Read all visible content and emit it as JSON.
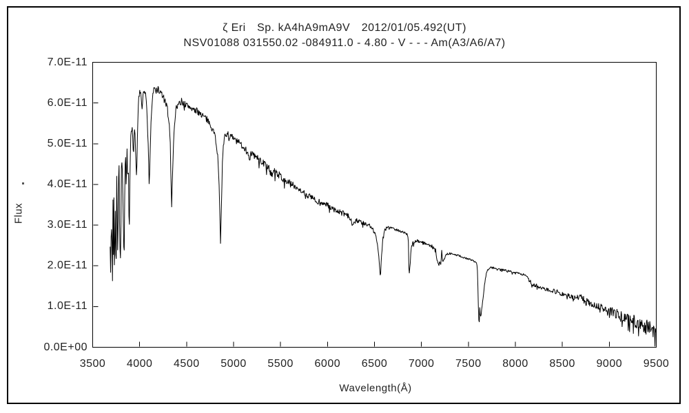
{
  "page": {
    "background": "#ffffff",
    "border_color": "#000000"
  },
  "chart_data": {
    "type": "line",
    "title_line1": "ζ Eri　Sp. kA4hA9mA9V　2012/01/05.492(UT)",
    "title_line2": "NSV01088 031550.02 -084911.0 - 4.80 - V - - - Am(A3/A6/A7)",
    "xlabel": "Wavelength(Å)",
    "ylabel": "Flux",
    "stray_mark": ".",
    "line_color": "#000000",
    "grid": false,
    "legend": "none",
    "xlim": [
      3500,
      9500
    ],
    "ylim_flux_1e11": [
      0,
      7
    ],
    "flux_scale": "1e-11",
    "x_ticks": [
      3500,
      4000,
      4500,
      5000,
      5500,
      6000,
      6500,
      7000,
      7500,
      8000,
      8500,
      9000,
      9500
    ],
    "x_tick_labels": [
      "3500",
      "4000",
      "4500",
      "5000",
      "5500",
      "6000",
      "6500",
      "7000",
      "7500",
      "8000",
      "8500",
      "9000",
      "9500"
    ],
    "y_ticks_flux_1e11": [
      0,
      1,
      2,
      3,
      4,
      5,
      6,
      7
    ],
    "y_tick_labels": [
      "0.0E+00",
      "1.0E-11",
      "2.0E-11",
      "3.0E-11",
      "4.0E-11",
      "5.0E-11",
      "6.0E-11",
      "7.0E-11"
    ],
    "series_name": "flux-spectrum",
    "sample_step_angstrom": 5,
    "noise_seed": 7,
    "noise_segments": [
      [
        3686,
        0.05
      ],
      [
        3990,
        0.1
      ],
      [
        4315,
        0.05
      ],
      [
        4360,
        0.09
      ],
      [
        4830,
        0.04
      ],
      [
        4880,
        0.09
      ],
      [
        5150,
        0.09
      ],
      [
        5650,
        0.07
      ],
      [
        6450,
        0.04
      ],
      [
        6600,
        0.035
      ],
      [
        6850,
        0.02
      ],
      [
        6900,
        0.04
      ],
      [
        7150,
        0.03
      ],
      [
        7240,
        0.03
      ],
      [
        7590,
        0.02
      ],
      [
        7660,
        0.02
      ],
      [
        7700,
        0.025
      ],
      [
        8140,
        0.05
      ],
      [
        8400,
        0.07
      ],
      [
        8700,
        0.09
      ],
      [
        9000,
        0.12
      ],
      [
        9250,
        0.16
      ],
      [
        9380,
        0.2
      ]
    ],
    "anchors": [
      [
        3686,
        2.6
      ],
      [
        3690,
        1.35
      ],
      [
        3694,
        3.1
      ],
      [
        3698,
        2.3
      ],
      [
        3703,
        3.3
      ],
      [
        3708,
        2.1
      ],
      [
        3712,
        1.5
      ],
      [
        3716,
        3.6
      ],
      [
        3721,
        2.3
      ],
      [
        3726,
        3.7
      ],
      [
        3730,
        2.2
      ],
      [
        3734,
        1.55
      ],
      [
        3739,
        3.9
      ],
      [
        3744,
        2.6
      ],
      [
        3750,
        1.75
      ],
      [
        3756,
        4.25
      ],
      [
        3762,
        3.0
      ],
      [
        3768,
        2.05
      ],
      [
        3774,
        4.1
      ],
      [
        3781,
        4.5
      ],
      [
        3788,
        2.6
      ],
      [
        3798,
        2.1
      ],
      [
        3806,
        4.4
      ],
      [
        3814,
        4.65
      ],
      [
        3822,
        3.6
      ],
      [
        3835,
        2.1
      ],
      [
        3843,
        4.2
      ],
      [
        3850,
        4.85
      ],
      [
        3858,
        3.7
      ],
      [
        3865,
        5.0
      ],
      [
        3872,
        4.1
      ],
      [
        3880,
        4.5
      ],
      [
        3889,
        2.55
      ],
      [
        3897,
        4.3
      ],
      [
        3905,
        5.15
      ],
      [
        3915,
        5.45
      ],
      [
        3925,
        5.3
      ],
      [
        3934,
        4.6
      ],
      [
        3943,
        5.4
      ],
      [
        3952,
        5.2
      ],
      [
        3960,
        4.6
      ],
      [
        3968,
        4.15
      ],
      [
        3976,
        5.1
      ],
      [
        3985,
        5.9
      ],
      [
        3995,
        6.2
      ],
      [
        4005,
        6.3
      ],
      [
        4015,
        6.25
      ],
      [
        4022,
        5.95
      ],
      [
        4030,
        6.2
      ],
      [
        4040,
        6.35
      ],
      [
        4050,
        6.3
      ],
      [
        4062,
        6.2
      ],
      [
        4075,
        5.9
      ],
      [
        4088,
        5.2
      ],
      [
        4102,
        3.95
      ],
      [
        4112,
        4.8
      ],
      [
        4122,
        5.6
      ],
      [
        4132,
        6.0
      ],
      [
        4145,
        6.25
      ],
      [
        4158,
        6.35
      ],
      [
        4172,
        6.3
      ],
      [
        4188,
        6.35
      ],
      [
        4205,
        6.3
      ],
      [
        4222,
        6.25
      ],
      [
        4240,
        6.2
      ],
      [
        4258,
        6.1
      ],
      [
        4275,
        6.0
      ],
      [
        4295,
        5.85
      ],
      [
        4312,
        5.6
      ],
      [
        4326,
        5.0
      ],
      [
        4340,
        3.4
      ],
      [
        4352,
        4.4
      ],
      [
        4365,
        5.3
      ],
      [
        4378,
        5.7
      ],
      [
        4392,
        5.9
      ],
      [
        4408,
        5.95
      ],
      [
        4425,
        6.0
      ],
      [
        4445,
        6.05
      ],
      [
        4468,
        6.0
      ],
      [
        4490,
        5.95
      ],
      [
        4515,
        5.92
      ],
      [
        4540,
        5.9
      ],
      [
        4570,
        5.85
      ],
      [
        4600,
        5.8
      ],
      [
        4630,
        5.78
      ],
      [
        4660,
        5.72
      ],
      [
        4690,
        5.65
      ],
      [
        4720,
        5.58
      ],
      [
        4750,
        5.5
      ],
      [
        4780,
        5.35
      ],
      [
        4808,
        5.15
      ],
      [
        4830,
        4.75
      ],
      [
        4845,
        4.1
      ],
      [
        4861,
        2.62
      ],
      [
        4872,
        3.6
      ],
      [
        4882,
        4.6
      ],
      [
        4895,
        5.0
      ],
      [
        4910,
        5.2
      ],
      [
        4928,
        5.25
      ],
      [
        4948,
        5.22
      ],
      [
        4970,
        5.18
      ],
      [
        5000,
        5.12
      ],
      [
        5040,
        5.05
      ],
      [
        5080,
        4.98
      ],
      [
        5120,
        4.9
      ],
      [
        5155,
        4.8
      ],
      [
        5168,
        4.55
      ],
      [
        5180,
        4.75
      ],
      [
        5215,
        4.72
      ],
      [
        5250,
        4.65
      ],
      [
        5290,
        4.58
      ],
      [
        5330,
        4.5
      ],
      [
        5370,
        4.42
      ],
      [
        5397,
        4.28
      ],
      [
        5420,
        4.35
      ],
      [
        5460,
        4.28
      ],
      [
        5500,
        4.2
      ],
      [
        5540,
        4.12
      ],
      [
        5580,
        4.05
      ],
      [
        5620,
        4.0
      ],
      [
        5660,
        3.95
      ],
      [
        5700,
        3.88
      ],
      [
        5740,
        3.82
      ],
      [
        5780,
        3.75
      ],
      [
        5820,
        3.7
      ],
      [
        5860,
        3.64
      ],
      [
        5890,
        3.5
      ],
      [
        5910,
        3.58
      ],
      [
        5950,
        3.54
      ],
      [
        5990,
        3.5
      ],
      [
        6030,
        3.44
      ],
      [
        6070,
        3.38
      ],
      [
        6110,
        3.34
      ],
      [
        6150,
        3.3
      ],
      [
        6190,
        3.26
      ],
      [
        6230,
        3.2
      ],
      [
        6262,
        3.05
      ],
      [
        6285,
        3.1
      ],
      [
        6320,
        3.12
      ],
      [
        6360,
        3.06
      ],
      [
        6400,
        3.02
      ],
      [
        6440,
        2.98
      ],
      [
        6480,
        2.92
      ],
      [
        6510,
        2.8
      ],
      [
        6535,
        2.5
      ],
      [
        6550,
        2.1
      ],
      [
        6563,
        1.74
      ],
      [
        6574,
        2.2
      ],
      [
        6588,
        2.65
      ],
      [
        6605,
        2.88
      ],
      [
        6630,
        2.95
      ],
      [
        6660,
        2.95
      ],
      [
        6700,
        2.92
      ],
      [
        6740,
        2.88
      ],
      [
        6780,
        2.85
      ],
      [
        6815,
        2.82
      ],
      [
        6845,
        2.78
      ],
      [
        6860,
        2.7
      ],
      [
        6866,
        1.95
      ],
      [
        6870,
        1.74
      ],
      [
        6874,
        2.05
      ],
      [
        6878,
        1.85
      ],
      [
        6884,
        2.25
      ],
      [
        6892,
        2.45
      ],
      [
        6905,
        2.55
      ],
      [
        6930,
        2.6
      ],
      [
        6955,
        2.62
      ],
      [
        6980,
        2.6
      ],
      [
        7010,
        2.58
      ],
      [
        7040,
        2.55
      ],
      [
        7070,
        2.52
      ],
      [
        7100,
        2.5
      ],
      [
        7130,
        2.46
      ],
      [
        7152,
        2.4
      ],
      [
        7163,
        2.15
      ],
      [
        7178,
        2.05
      ],
      [
        7195,
        2.1
      ],
      [
        7208,
        2.05
      ],
      [
        7216,
        2.4
      ],
      [
        7224,
        2.1
      ],
      [
        7238,
        2.15
      ],
      [
        7255,
        2.25
      ],
      [
        7280,
        2.3
      ],
      [
        7310,
        2.3
      ],
      [
        7345,
        2.28
      ],
      [
        7380,
        2.26
      ],
      [
        7415,
        2.24
      ],
      [
        7450,
        2.2
      ],
      [
        7485,
        2.18
      ],
      [
        7520,
        2.15
      ],
      [
        7555,
        2.12
      ],
      [
        7580,
        2.1
      ],
      [
        7595,
        2.0
      ],
      [
        7603,
        1.3
      ],
      [
        7610,
        0.68
      ],
      [
        7617,
        0.63
      ],
      [
        7622,
        1.05
      ],
      [
        7628,
        0.7
      ],
      [
        7636,
        0.82
      ],
      [
        7645,
        1.0
      ],
      [
        7658,
        1.25
      ],
      [
        7672,
        1.55
      ],
      [
        7688,
        1.8
      ],
      [
        7705,
        1.9
      ],
      [
        7725,
        1.95
      ],
      [
        7750,
        1.97
      ],
      [
        7780,
        1.95
      ],
      [
        7815,
        1.93
      ],
      [
        7850,
        1.91
      ],
      [
        7890,
        1.89
      ],
      [
        7930,
        1.87
      ],
      [
        7970,
        1.85
      ],
      [
        8010,
        1.83
      ],
      [
        8050,
        1.81
      ],
      [
        8090,
        1.79
      ],
      [
        8125,
        1.76
      ],
      [
        8150,
        1.65
      ],
      [
        8175,
        1.55
      ],
      [
        8205,
        1.52
      ],
      [
        8240,
        1.5
      ],
      [
        8280,
        1.47
      ],
      [
        8320,
        1.44
      ],
      [
        8360,
        1.41
      ],
      [
        8400,
        1.38
      ],
      [
        8440,
        1.36
      ],
      [
        8480,
        1.33
      ],
      [
        8520,
        1.3
      ],
      [
        8560,
        1.27
      ],
      [
        8600,
        1.23
      ],
      [
        8640,
        1.22
      ],
      [
        8680,
        1.24
      ],
      [
        8720,
        1.18
      ],
      [
        8760,
        1.12
      ],
      [
        8800,
        1.07
      ],
      [
        8840,
        1.04
      ],
      [
        8880,
        1.01
      ],
      [
        8920,
        0.97
      ],
      [
        8960,
        0.93
      ],
      [
        9000,
        0.9
      ],
      [
        9040,
        0.86
      ],
      [
        9080,
        0.82
      ],
      [
        9120,
        0.78
      ],
      [
        9160,
        0.74
      ],
      [
        9200,
        0.7
      ],
      [
        9240,
        0.66
      ],
      [
        9280,
        0.62
      ],
      [
        9320,
        0.58
      ],
      [
        9360,
        0.54
      ],
      [
        9400,
        0.5
      ],
      [
        9440,
        0.46
      ],
      [
        9470,
        0.42
      ],
      [
        9500,
        0.4
      ]
    ]
  }
}
